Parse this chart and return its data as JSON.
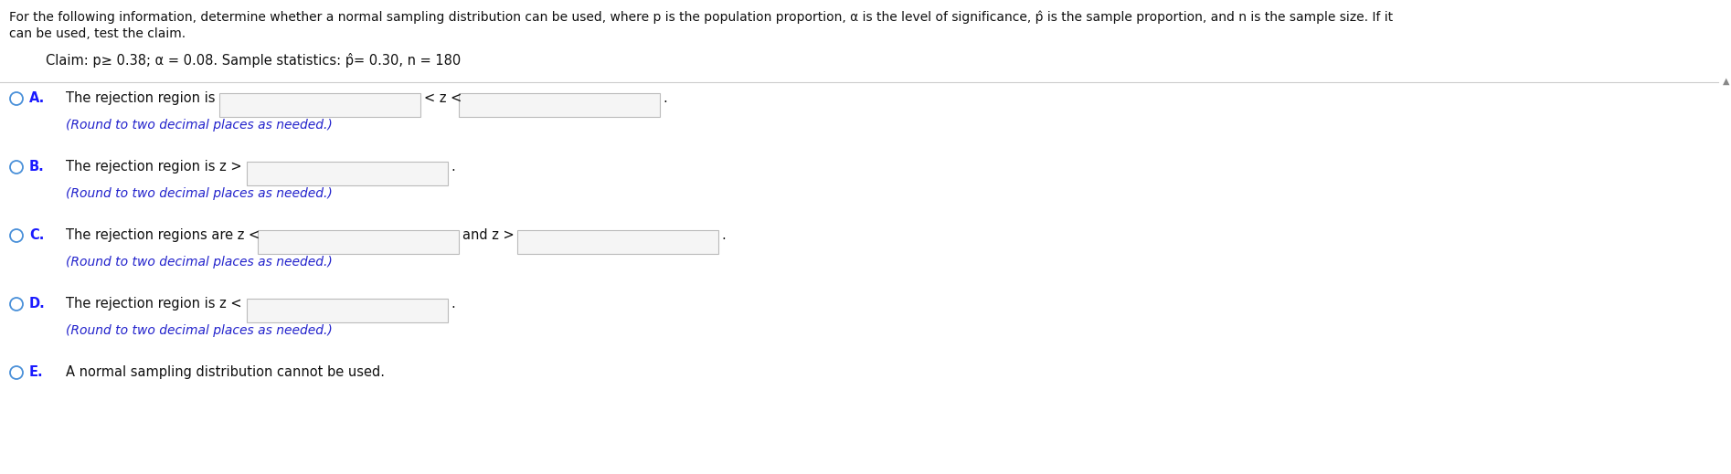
{
  "bg_color": "#ffffff",
  "header_line1": "For the following information, determine whether a normal sampling distribution can be used, where p is the population proportion, α is the level of significance, p̂ is the sample proportion, and n is the sample size. If it",
  "header_line2": "can be used, test the claim.",
  "claim_text": "Claim: p≥ 0.38; α = 0.08. Sample statistics: p̂= 0.30, n = 180",
  "options": [
    {
      "letter": "A.",
      "text_before": "The rejection region is",
      "has_box1": true,
      "middle_text": "< z <",
      "has_box2": true,
      "end_text": ".",
      "subtext": "(Round to two decimal places as needed.)"
    },
    {
      "letter": "B.",
      "text_before": "The rejection region is z >",
      "has_box1": true,
      "middle_text": "",
      "has_box2": false,
      "end_text": ".",
      "subtext": "(Round to two decimal places as needed.)"
    },
    {
      "letter": "C.",
      "text_before": "The rejection regions are z <",
      "has_box1": true,
      "middle_text": "and z >",
      "has_box2": true,
      "end_text": ".",
      "subtext": "(Round to two decimal places as needed.)"
    },
    {
      "letter": "D.",
      "text_before": "The rejection region is z <",
      "has_box1": true,
      "middle_text": "",
      "has_box2": false,
      "end_text": ".",
      "subtext": "(Round to two decimal places as needed.)"
    },
    {
      "letter": "E.",
      "text_before": "A normal sampling distribution cannot be used.",
      "has_box1": false,
      "middle_text": "",
      "has_box2": false,
      "end_text": "",
      "subtext": ""
    }
  ],
  "radio_color": "#4a90d9",
  "letter_color": "#1a1aff",
  "subtext_color": "#2222cc",
  "text_color": "#111111",
  "header_fontsize": 10.0,
  "claim_fontsize": 10.5,
  "option_fontsize": 10.5,
  "subtext_fontsize": 10.0
}
